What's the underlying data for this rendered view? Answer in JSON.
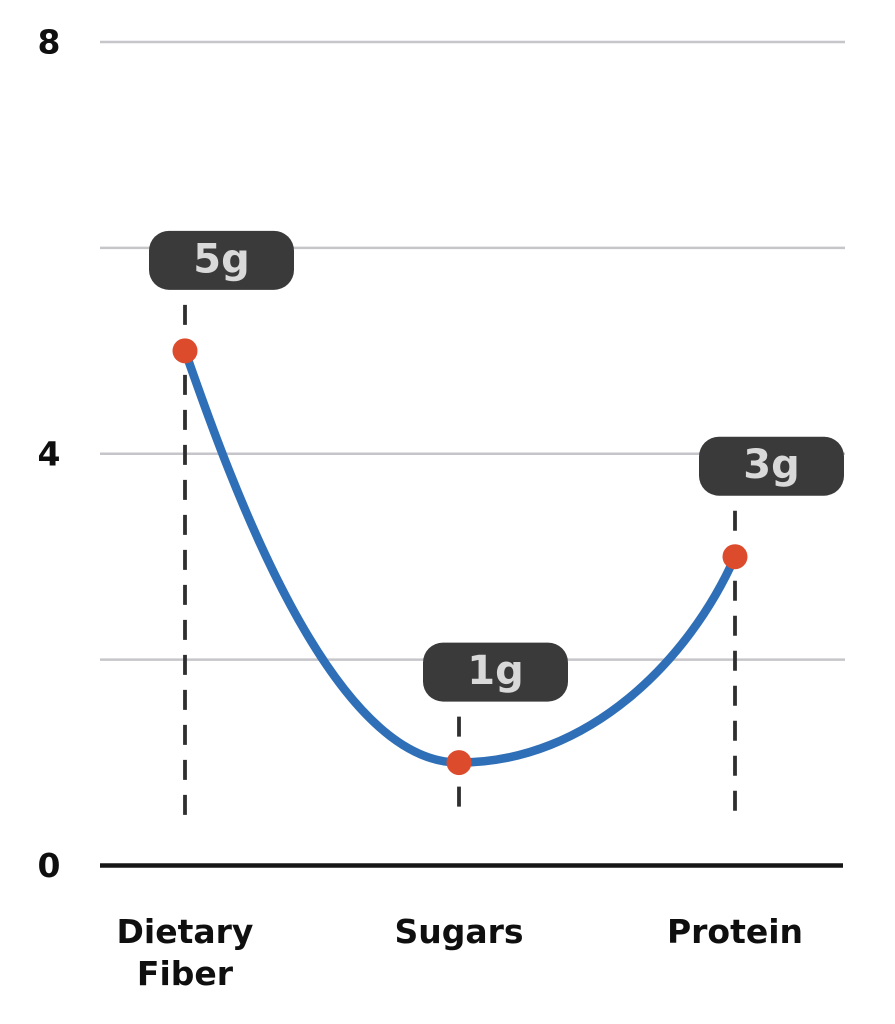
{
  "chart_data": {
    "type": "line",
    "title": "",
    "categories": [
      "Dietary Fiber",
      "Sugars",
      "Protein"
    ],
    "values": [
      5,
      1,
      3
    ],
    "point_labels": [
      "5g",
      "1g",
      "3g"
    ],
    "unit": "g",
    "xlabel": "",
    "ylabel": "",
    "ylim": [
      0,
      8
    ],
    "yticks": [
      {
        "value": 8,
        "label": "8"
      },
      {
        "value": 4,
        "label": "4"
      },
      {
        "value": 0,
        "label": "0"
      }
    ],
    "gridline_values": [
      8,
      6,
      4,
      2
    ],
    "grid": true,
    "legend": false,
    "colors": {
      "line": "#2f6fb7",
      "point": "#dd4b2d",
      "badge_bg": "#3a3a3a",
      "badge_text": "#d9d9d9",
      "gridline": "#c6c6ca",
      "baseline": "#161616",
      "guide_dash": "#2f2f2f",
      "axis_text": "#0f0f0f",
      "background": "#ffffff"
    }
  }
}
